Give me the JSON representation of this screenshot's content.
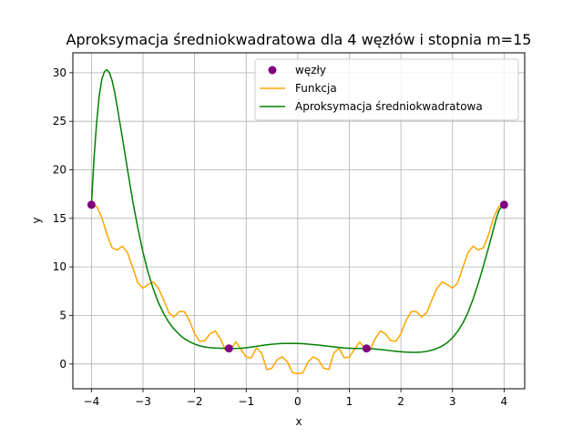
{
  "chart_data": {
    "type": "line",
    "title": "Aproksymacja średniokwadratowa dla 4 węzłów i stopnia m=15",
    "xlabel": "x",
    "ylabel": "y",
    "xlim": [
      -4.36,
      4.4
    ],
    "ylim": [
      -2.55,
      32.05
    ],
    "xticks": [
      -4,
      -3,
      -2,
      -1,
      0,
      1,
      2,
      3,
      4
    ],
    "yticks": [
      0,
      5,
      10,
      15,
      20,
      25,
      30
    ],
    "grid": true,
    "legend": {
      "position": "top-right",
      "entries": [
        "węzły",
        "Funkcja",
        "Aproksymacja średniokwadratowa"
      ]
    },
    "series": [
      {
        "name": "węzły",
        "kind": "scatter",
        "color": "#800080",
        "x": [
          -4.0,
          -1.3333,
          1.3333,
          4.0
        ],
        "y": [
          16.4,
          1.6,
          1.6,
          16.4
        ]
      },
      {
        "name": "Funkcja",
        "kind": "line",
        "color": "#ffa500",
        "x": [
          -4.0,
          -3.9,
          -3.8,
          -3.7,
          -3.6,
          -3.5,
          -3.4,
          -3.3,
          -3.2,
          -3.1,
          -3.0,
          -2.9,
          -2.8,
          -2.7,
          -2.6,
          -2.5,
          -2.4,
          -2.3,
          -2.2,
          -2.1,
          -2.0,
          -1.9,
          -1.8,
          -1.7,
          -1.6,
          -1.5,
          -1.4,
          -1.3,
          -1.2,
          -1.1,
          -1.0,
          -0.9,
          -0.8,
          -0.7,
          -0.6,
          -0.5,
          -0.4,
          -0.3,
          -0.2,
          -0.1,
          0.0,
          0.1,
          0.2,
          0.3,
          0.4,
          0.5,
          0.6,
          0.7,
          0.8,
          0.9,
          1.0,
          1.1,
          1.2,
          1.3,
          1.4,
          1.5,
          1.6,
          1.7,
          1.8,
          1.9,
          2.0,
          2.1,
          2.2,
          2.3,
          2.4,
          2.5,
          2.6,
          2.7,
          2.8,
          2.9,
          3.0,
          3.1,
          3.2,
          3.3,
          3.4,
          3.5,
          3.6,
          3.7,
          3.8,
          3.9,
          4.0
        ],
        "y": [
          16.4,
          16.23,
          15.12,
          13.34,
          11.97,
          11.74,
          12.13,
          11.47,
          9.93,
          8.36,
          7.8,
          8.18,
          8.45,
          7.79,
          6.6,
          5.28,
          4.85,
          5.4,
          5.4,
          4.48,
          3.11,
          2.33,
          2.41,
          3.11,
          3.4,
          2.6,
          1.42,
          1.56,
          2.27,
          1.51,
          0.71,
          0.64,
          1.66,
          1.11,
          -0.58,
          -0.43,
          0.45,
          0.74,
          0.21,
          -0.9,
          -1.0,
          -0.9,
          0.21,
          0.74,
          0.45,
          -0.43,
          -0.58,
          1.11,
          1.66,
          0.64,
          0.71,
          1.51,
          2.27,
          1.56,
          1.42,
          2.6,
          3.4,
          3.11,
          2.41,
          2.33,
          3.11,
          4.48,
          5.4,
          5.4,
          4.85,
          5.28,
          6.6,
          7.79,
          8.45,
          8.18,
          7.8,
          8.36,
          9.93,
          11.47,
          12.13,
          11.74,
          11.97,
          13.34,
          15.12,
          16.23,
          16.4
        ]
      },
      {
        "name": "Aproksymacja średniokwadratowa",
        "kind": "line",
        "color": "#008000",
        "x": [
          -4.0,
          -3.95,
          -3.9,
          -3.85,
          -3.8,
          -3.75,
          -3.7,
          -3.65,
          -3.6,
          -3.55,
          -3.5,
          -3.4,
          -3.3,
          -3.2,
          -3.1,
          -3.0,
          -2.9,
          -2.8,
          -2.7,
          -2.6,
          -2.5,
          -2.4,
          -2.3,
          -2.2,
          -2.1,
          -2.0,
          -1.9,
          -1.8,
          -1.7,
          -1.6,
          -1.5,
          -1.4,
          -1.3,
          -1.2,
          -1.1,
          -1.0,
          -0.9,
          -0.8,
          -0.7,
          -0.6,
          -0.5,
          -0.4,
          -0.3,
          -0.2,
          -0.1,
          0.0,
          0.1,
          0.2,
          0.3,
          0.4,
          0.5,
          0.6,
          0.7,
          0.8,
          0.9,
          1.0,
          1.1,
          1.2,
          1.3,
          1.4,
          1.5,
          1.6,
          1.7,
          1.8,
          1.9,
          2.0,
          2.1,
          2.2,
          2.3,
          2.4,
          2.5,
          2.6,
          2.7,
          2.8,
          2.9,
          3.0,
          3.1,
          3.2,
          3.3,
          3.4,
          3.5,
          3.6,
          3.7,
          3.8,
          3.85,
          3.9,
          3.95,
          4.0
        ],
        "y": [
          16.4,
          21.2,
          24.8,
          27.6,
          29.3,
          30.1,
          30.3,
          30.0,
          29.2,
          28.0,
          26.5,
          23.3,
          20.0,
          16.8,
          14.0,
          11.5,
          9.4,
          7.7,
          6.3,
          5.2,
          4.3,
          3.6,
          3.05,
          2.6,
          2.3,
          2.05,
          1.87,
          1.75,
          1.68,
          1.64,
          1.62,
          1.61,
          1.6,
          1.6,
          1.62,
          1.67,
          1.74,
          1.82,
          1.9,
          1.97,
          2.03,
          2.08,
          2.11,
          2.12,
          2.12,
          2.11,
          2.09,
          2.05,
          2.0,
          1.95,
          1.89,
          1.82,
          1.76,
          1.7,
          1.65,
          1.62,
          1.6,
          1.6,
          1.6,
          1.58,
          1.54,
          1.49,
          1.43,
          1.37,
          1.31,
          1.26,
          1.22,
          1.2,
          1.2,
          1.23,
          1.3,
          1.42,
          1.6,
          1.85,
          2.2,
          2.7,
          3.35,
          4.2,
          5.3,
          6.7,
          8.3,
          10.1,
          12.0,
          14.0,
          15.0,
          15.8,
          16.2,
          16.4
        ]
      }
    ]
  }
}
